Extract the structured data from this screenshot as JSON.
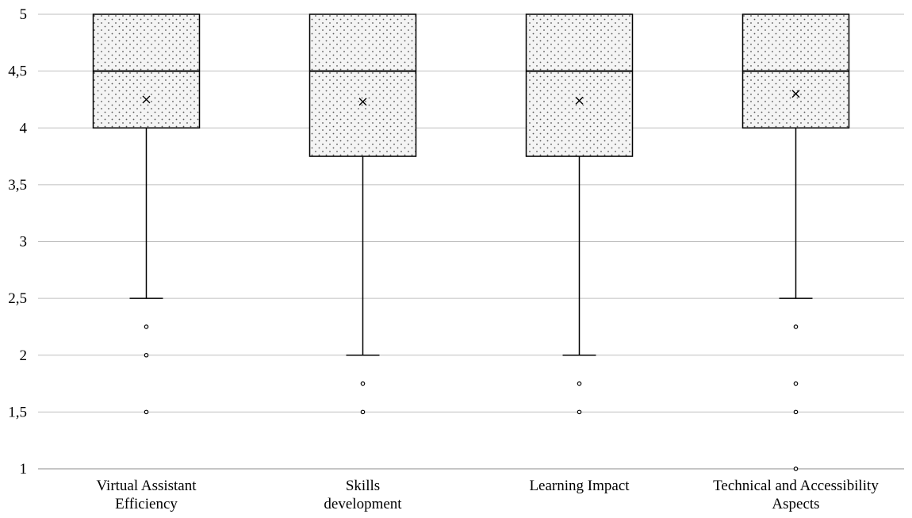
{
  "chart_data": {
    "type": "box",
    "title": "",
    "xlabel": "",
    "ylabel": "",
    "ylim": [
      1,
      5
    ],
    "yticks": [
      1,
      1.5,
      2,
      2.5,
      3,
      3.5,
      4,
      4.5,
      5
    ],
    "ytick_labels": [
      "1",
      "1,5",
      "2",
      "2,5",
      "3",
      "3,5",
      "4",
      "4,5",
      "5"
    ],
    "grid": true,
    "categories": [
      {
        "label_lines": [
          "Virtual Assistant",
          "Efficiency"
        ],
        "q1": 4,
        "median": 4.5,
        "q3": 5,
        "mean": 4.25,
        "whisker_low": 2.5,
        "whisker_high": 5,
        "outliers": [
          2.25,
          2,
          1.5
        ]
      },
      {
        "label_lines": [
          "Skills",
          "development"
        ],
        "q1": 3.75,
        "median": 4.5,
        "q3": 5,
        "mean": 4.23,
        "whisker_low": 2,
        "whisker_high": 5,
        "outliers": [
          1.75,
          1.5
        ]
      },
      {
        "label_lines": [
          "Learning Impact"
        ],
        "q1": 3.75,
        "median": 4.5,
        "q3": 5,
        "mean": 4.24,
        "whisker_low": 2,
        "whisker_high": 5,
        "outliers": [
          1.75,
          1.5
        ]
      },
      {
        "label_lines": [
          "Technical and Accessibility",
          "Aspects"
        ],
        "q1": 4,
        "median": 4.5,
        "q3": 5,
        "mean": 4.3,
        "whisker_low": 2.5,
        "whisker_high": 5,
        "outliers": [
          2.25,
          1.75,
          1.5,
          1
        ]
      }
    ],
    "colors": {
      "box_fill": "#f4f4f4",
      "dots": "#555555",
      "grid": "#bfbfbf",
      "stroke": "#000000"
    }
  }
}
